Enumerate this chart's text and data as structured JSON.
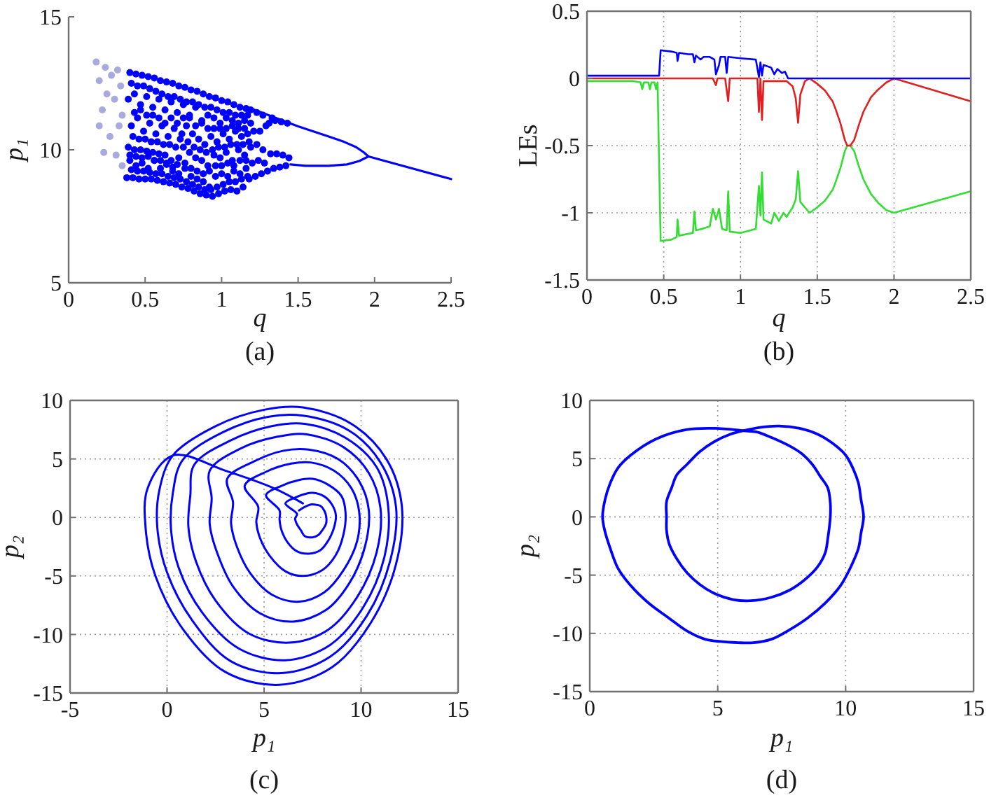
{
  "chart_data": [
    {
      "type": "scatter",
      "title": "(a)",
      "xlabel": "q",
      "ylabel": "p₁",
      "xlim": [
        0,
        2.5
      ],
      "ylim": [
        5,
        15
      ],
      "xticks": [
        0,
        0.5,
        1,
        1.5,
        2,
        2.5
      ],
      "yticks": [
        5,
        10,
        15
      ],
      "grid": false,
      "series": [
        {
          "color": "#a9a9dd",
          "marker": "circle",
          "x": [
            0.18,
            0.2,
            0.2,
            0.22,
            0.23,
            0.24,
            0.25,
            0.27,
            0.28,
            0.3,
            0.31,
            0.32,
            0.33,
            0.34,
            0.35,
            0.35
          ],
          "values": [
            13.3,
            12.6,
            10.9,
            11.5,
            9.9,
            13.1,
            12.1,
            10.5,
            12.8,
            11.9,
            9.8,
            13.0,
            10.9,
            12.4,
            9.4,
            11.3
          ]
        },
        {
          "color": "#0000ff",
          "marker": "circle",
          "x": [
            0.38,
            0.4,
            0.39,
            0.41,
            0.39,
            0.4,
            0.42,
            0.44,
            0.43,
            0.45,
            0.43,
            0.44,
            0.46,
            0.48,
            0.47,
            0.49,
            0.47,
            0.48,
            0.5,
            0.52,
            0.51,
            0.53,
            0.51,
            0.52,
            0.54,
            0.56,
            0.55,
            0.57,
            0.55,
            0.56,
            0.58,
            0.6,
            0.59,
            0.61,
            0.59,
            0.6,
            0.62,
            0.64,
            0.63,
            0.65,
            0.63,
            0.64,
            0.66,
            0.68,
            0.67,
            0.69,
            0.67,
            0.68,
            0.7,
            0.72,
            0.71,
            0.73,
            0.71,
            0.72,
            0.74,
            0.76,
            0.75,
            0.77,
            0.75,
            0.76,
            0.78,
            0.8,
            0.79,
            0.81,
            0.79,
            0.8,
            0.82,
            0.84,
            0.83,
            0.85,
            0.83,
            0.84,
            0.86,
            0.88,
            0.87,
            0.89,
            0.87,
            0.88,
            0.9,
            0.92,
            0.91,
            0.93,
            0.91,
            0.92,
            0.94,
            0.96,
            0.95,
            0.97,
            0.95,
            0.96,
            0.98,
            1.0,
            0.99,
            1.01,
            0.99,
            1.0,
            1.02,
            1.04,
            1.03,
            1.05,
            1.03,
            1.04,
            1.06,
            1.08,
            1.07,
            1.09,
            1.07,
            1.08,
            1.1,
            1.12,
            1.11,
            1.13,
            1.11,
            1.12,
            1.14,
            1.16,
            1.15,
            1.17,
            1.15,
            1.16,
            1.18,
            1.2,
            1.19,
            1.21,
            1.19,
            1.22,
            1.24,
            1.23,
            1.25,
            1.23,
            1.26,
            1.28,
            1.27,
            1.29,
            1.27,
            1.3,
            1.32,
            1.31,
            1.33,
            1.34,
            1.36,
            1.35,
            1.38,
            1.4,
            1.39,
            1.42,
            1.44,
            1.43
          ],
          "values": [
            8.95,
            9.6,
            10.1,
            10.9,
            11.9,
            12.9,
            8.95,
            9.4,
            10.0,
            11.2,
            12.1,
            12.85,
            8.9,
            9.5,
            10.0,
            10.7,
            11.7,
            12.8,
            8.9,
            9.3,
            9.95,
            11.0,
            12.0,
            12.75,
            8.9,
            9.6,
            9.9,
            10.6,
            11.6,
            12.7,
            8.85,
            9.3,
            9.85,
            10.9,
            11.9,
            12.6,
            8.8,
            9.5,
            9.8,
            10.5,
            11.5,
            12.55,
            8.75,
            9.2,
            9.6,
            10.8,
            11.8,
            12.5,
            8.7,
            9.1,
            9.45,
            10.4,
            11.4,
            12.4,
            8.6,
            9.3,
            10.1,
            10.9,
            11.7,
            12.35,
            8.55,
            9.0,
            9.9,
            10.6,
            11.3,
            12.25,
            8.45,
            8.9,
            9.7,
            10.4,
            11.6,
            12.2,
            8.35,
            8.8,
            9.6,
            10.2,
            11.1,
            12.1,
            8.3,
            8.6,
            9.4,
            10.5,
            11.3,
            12.0,
            8.25,
            9.0,
            9.8,
            10.3,
            11.2,
            11.95,
            8.35,
            9.1,
            9.7,
            10.6,
            11.0,
            11.85,
            8.45,
            9.0,
            9.9,
            10.4,
            11.2,
            11.8,
            8.5,
            9.2,
            9.6,
            10.7,
            11.1,
            11.7,
            8.45,
            9.1,
            10.0,
            10.5,
            11.0,
            11.6,
            8.6,
            9.3,
            9.8,
            10.6,
            11.1,
            11.55,
            8.9,
            9.5,
            10.1,
            10.7,
            11.5,
            9.0,
            9.6,
            10.2,
            10.7,
            11.4,
            9.1,
            9.5,
            10.0,
            10.9,
            11.3,
            9.2,
            9.85,
            11.0,
            11.2,
            9.3,
            9.85,
            11.1,
            9.35,
            9.8,
            11.05,
            9.4,
            9.7,
            11.0
          ]
        },
        {
          "color": "#0000ff",
          "marker": "circle",
          "x": [
            0.41,
            0.4,
            0.42,
            0.43,
            0.41,
            0.45,
            0.44,
            0.46,
            0.47,
            0.45,
            0.49,
            0.48,
            0.5,
            0.51,
            0.49,
            0.53,
            0.52,
            0.54,
            0.55,
            0.53,
            0.57,
            0.56,
            0.58,
            0.59,
            0.57,
            0.61,
            0.6,
            0.62,
            0.63,
            0.61,
            0.65,
            0.64,
            0.66,
            0.67,
            0.65,
            0.69,
            0.68,
            0.7,
            0.71,
            0.69,
            0.73,
            0.72,
            0.74,
            0.75,
            0.73,
            0.77,
            0.76,
            0.78,
            0.79,
            0.77,
            0.81,
            0.8,
            0.82,
            0.83,
            0.81,
            0.85,
            0.84,
            0.86,
            0.87,
            0.85,
            0.89,
            0.88,
            0.9,
            0.91,
            0.89,
            0.93,
            0.92,
            0.94,
            0.95,
            0.93,
            0.97,
            0.96,
            0.98,
            0.99,
            0.97,
            1.01,
            1.0,
            1.02,
            1.03,
            1.01,
            1.05,
            1.04,
            1.06,
            1.07,
            1.05,
            1.09,
            1.08,
            1.1,
            1.11,
            1.09,
            1.13,
            1.12,
            1.14,
            1.15,
            1.13,
            1.17,
            1.16,
            1.18,
            1.19,
            1.17
          ],
          "values": [
            9.25,
            9.8,
            10.5,
            11.4,
            12.5,
            9.2,
            9.75,
            10.4,
            11.5,
            12.4,
            9.2,
            9.7,
            10.4,
            11.3,
            12.4,
            9.15,
            9.75,
            10.3,
            11.3,
            12.3,
            9.1,
            9.6,
            10.3,
            11.2,
            12.2,
            9.1,
            9.6,
            10.2,
            11.0,
            12.1,
            9.0,
            9.45,
            10.2,
            11.2,
            12.0,
            8.95,
            9.35,
            10.1,
            11.0,
            12.0,
            8.9,
            9.7,
            10.6,
            11.2,
            11.9,
            8.8,
            9.5,
            10.3,
            11.2,
            11.8,
            8.7,
            9.3,
            10.1,
            10.9,
            11.8,
            8.6,
            9.2,
            10.0,
            11.0,
            11.7,
            8.5,
            9.1,
            9.9,
            10.8,
            11.6,
            8.5,
            9.2,
            10.0,
            10.8,
            11.6,
            8.6,
            9.4,
            10.1,
            10.8,
            11.5,
            8.7,
            9.4,
            10.1,
            10.8,
            11.4,
            8.8,
            9.5,
            10.2,
            10.9,
            11.4,
            8.8,
            9.4,
            10.2,
            10.8,
            11.3,
            8.9,
            9.6,
            10.2,
            10.8,
            11.3,
            9.0,
            9.6,
            10.3,
            11.0,
            11.3
          ]
        },
        {
          "type": "line",
          "color": "#0000ff",
          "x": [
            1.17,
            1.5,
            1.7,
            1.8,
            1.88,
            1.93,
            1.96,
            2.5
          ],
          "values": [
            11.6,
            10.88,
            10.5,
            10.3,
            10.1,
            9.9,
            9.75,
            8.9
          ]
        },
        {
          "type": "line",
          "color": "#0000ff",
          "x": [
            1.45,
            1.55,
            1.7,
            1.82,
            1.9,
            1.96
          ],
          "values": [
            9.45,
            9.4,
            9.4,
            9.45,
            9.58,
            9.75
          ]
        }
      ]
    },
    {
      "type": "line",
      "title": "(b)",
      "xlabel": "q",
      "ylabel": "LEs",
      "xlim": [
        0,
        2.5
      ],
      "ylim": [
        -1.5,
        0.5
      ],
      "xticks": [
        0,
        0.5,
        1,
        1.5,
        2,
        2.5
      ],
      "yticks": [
        -1.5,
        -1,
        -0.5,
        0,
        0.5
      ],
      "grid": true,
      "series": [
        {
          "color": "#33dd33",
          "x": [
            0,
            0.3,
            0.35,
            0.36,
            0.37,
            0.4,
            0.41,
            0.42,
            0.44,
            0.45,
            0.46,
            0.47,
            0.48,
            0.55,
            0.585,
            0.59,
            0.6,
            0.69,
            0.7,
            0.71,
            0.75,
            0.8,
            0.82,
            0.84,
            0.86,
            0.88,
            0.91,
            0.92,
            0.93,
            1.0,
            1.1,
            1.12,
            1.13,
            1.14,
            1.15,
            1.2,
            1.22,
            1.25,
            1.28,
            1.3,
            1.34,
            1.36,
            1.375,
            1.39,
            1.45,
            1.5,
            1.55,
            1.6,
            1.62,
            1.65,
            1.68,
            1.695,
            1.715,
            1.74,
            1.77,
            1.8,
            1.85,
            1.9,
            1.95,
            2.0,
            2.5
          ],
          "values": [
            -0.02,
            -0.02,
            -0.03,
            -0.08,
            -0.03,
            -0.03,
            -0.08,
            -0.03,
            -0.03,
            -0.08,
            -0.03,
            -0.63,
            -1.21,
            -1.2,
            -1.18,
            -1.05,
            -1.17,
            -1.15,
            -0.99,
            -1.13,
            -1.12,
            -1.1,
            -0.97,
            -1.05,
            -0.97,
            -1.12,
            -1.13,
            -0.84,
            -1.14,
            -1.15,
            -1.12,
            -0.8,
            -1.02,
            -0.7,
            -1.05,
            -1.08,
            -1.0,
            -1.06,
            -1.0,
            -1.03,
            -0.96,
            -0.9,
            -0.69,
            -0.92,
            -1.0,
            -0.96,
            -0.91,
            -0.83,
            -0.77,
            -0.67,
            -0.54,
            -0.5,
            -0.5,
            -0.54,
            -0.65,
            -0.75,
            -0.86,
            -0.93,
            -0.98,
            -1.0,
            -0.84
          ]
        },
        {
          "color": "#e02020",
          "x": [
            0,
            0.47,
            0.48,
            0.82,
            0.84,
            0.85,
            0.9,
            0.92,
            0.93,
            1.11,
            1.12,
            1.13,
            1.14,
            1.15,
            1.3,
            1.34,
            1.36,
            1.375,
            1.39,
            1.42,
            1.45,
            1.5,
            1.55,
            1.6,
            1.62,
            1.65,
            1.68,
            1.695,
            1.715,
            1.74,
            1.77,
            1.8,
            1.85,
            1.89,
            1.95,
            2.0,
            2.5
          ],
          "values": [
            0,
            0,
            0,
            0,
            -0.05,
            0,
            0,
            -0.17,
            0,
            0,
            -0.25,
            0,
            -0.31,
            -0.02,
            -0.02,
            -0.06,
            -0.15,
            -0.33,
            -0.12,
            -0.02,
            0,
            -0.04,
            -0.09,
            -0.17,
            -0.23,
            -0.33,
            -0.46,
            -0.5,
            -0.5,
            -0.46,
            -0.35,
            -0.25,
            -0.14,
            -0.09,
            -0.03,
            0,
            -0.17
          ]
        },
        {
          "color": "#0000ff",
          "x": [
            0,
            0.2,
            0.4,
            0.47,
            0.48,
            0.55,
            0.585,
            0.59,
            0.6,
            0.66,
            0.69,
            0.7,
            0.71,
            0.74,
            0.76,
            0.8,
            0.83,
            0.84,
            0.86,
            0.87,
            0.9,
            0.91,
            0.92,
            1.0,
            1.1,
            1.12,
            1.13,
            1.14,
            1.15,
            1.2,
            1.22,
            1.24,
            1.27,
            1.29,
            1.31,
            1.5,
            2.5
          ],
          "values": [
            0.02,
            0.02,
            0.02,
            0.02,
            0.21,
            0.2,
            0.19,
            0.13,
            0.19,
            0.18,
            0.18,
            0.12,
            0.17,
            0.14,
            0.16,
            0.16,
            0.14,
            0.03,
            0.1,
            0.16,
            0.16,
            0.04,
            0.16,
            0.15,
            0.14,
            0.01,
            0.12,
            0.02,
            0.1,
            0.08,
            0.03,
            0.07,
            0.04,
            0.05,
            0,
            0,
            0
          ]
        }
      ]
    },
    {
      "type": "line",
      "title": "(c)",
      "xlabel": "p₁",
      "ylabel": "p₂",
      "xlim": [
        -5,
        15
      ],
      "ylim": [
        -15,
        10
      ],
      "xticks": [
        -5,
        0,
        5,
        10,
        15
      ],
      "yticks": [
        -15,
        -10,
        -5,
        0,
        5,
        10
      ],
      "grid": true,
      "series": [
        {
          "color": "#0000ff",
          "x": [
            6.8,
            7.1,
            7.4,
            7.6,
            7.9,
            8.1,
            8.2,
            8.2,
            8.0,
            7.8,
            7.5,
            7.1,
            6.9,
            6.7,
            6.6,
            6.7,
            6.1,
            6.6,
            7.1,
            7.5,
            8.1,
            8.5,
            8.7,
            8.6,
            8.3,
            7.9,
            7.3,
            6.7,
            6.2,
            5.9,
            5.8,
            5.8,
            5.1,
            5.9,
            6.8,
            7.5,
            8.3,
            9.0,
            9.2,
            9.1,
            8.7,
            8.0,
            7.0,
            6.1,
            5.3,
            4.8,
            4.6,
            4.7,
            4.0,
            5.1,
            6.4,
            7.4,
            8.6,
            9.5,
            9.9,
            9.8,
            9.1,
            8.1,
            6.8,
            5.4,
            4.3,
            3.6,
            3.3,
            3.4,
            3.1,
            4.5,
            6.0,
            7.3,
            8.8,
            9.9,
            10.4,
            10.2,
            9.4,
            8.2,
            6.5,
            4.8,
            3.4,
            2.6,
            2.2,
            2.3,
            2.2,
            3.8,
            5.7,
            7.2,
            9.1,
            10.4,
            11.0,
            10.8,
            9.8,
            8.3,
            6.3,
            4.2,
            2.5,
            1.5,
            1.1,
            1.2,
            1.4,
            3.3,
            5.4,
            7.1,
            9.2,
            10.8,
            11.4,
            11.2,
            10.1,
            8.4,
            6.1,
            3.7,
            1.8,
            0.6,
            0.2,
            0.3,
            0.8,
            2.9,
            5.2,
            7.0,
            9.4,
            11.0,
            11.8,
            11.5,
            10.3,
            8.4,
            5.9,
            3.3,
            1.3,
            0,
            -0.5,
            -0.4,
            0.3,
            2.5,
            5.0,
            7.0,
            9.5,
            11.3,
            12.1,
            11.8,
            10.5,
            8.5,
            5.8,
            3.0,
            0.8,
            -0.6,
            -1.1,
            -1.0,
            0.3,
            3.0,
            5.5,
            7.0
          ],
          "values": [
            0.6,
            0.9,
            1.1,
            1.1,
            1.0,
            0.6,
            0.1,
            -0.5,
            -1.1,
            -1.5,
            -1.7,
            -1.6,
            -1.1,
            -0.6,
            -0.1,
            0.3,
            1.2,
            1.7,
            2.0,
            2.1,
            1.8,
            1.1,
            0.2,
            -0.9,
            -2.0,
            -2.8,
            -3.1,
            -2.9,
            -2.1,
            -1.1,
            -0.2,
            0.6,
            1.9,
            2.7,
            3.2,
            3.3,
            2.8,
            1.8,
            0.4,
            -1.4,
            -3.2,
            -4.5,
            -5.0,
            -4.6,
            -3.3,
            -1.8,
            -0.4,
            0.9,
            2.7,
            3.9,
            4.6,
            4.7,
            4.0,
            2.5,
            0.5,
            -2.0,
            -4.5,
            -6.4,
            -7.2,
            -6.6,
            -4.8,
            -2.5,
            -0.5,
            1.3,
            3.3,
            4.8,
            5.7,
            5.8,
            5.0,
            3.1,
            0.6,
            -2.5,
            -5.6,
            -7.9,
            -8.9,
            -8.2,
            -5.9,
            -3.1,
            -0.6,
            1.6,
            4.0,
            5.9,
            6.9,
            7.1,
            6.0,
            3.8,
            0.8,
            -3.0,
            -6.8,
            -9.6,
            -10.7,
            -9.9,
            -7.1,
            -3.8,
            -0.8,
            1.9,
            4.5,
            6.6,
            7.8,
            8.0,
            6.8,
            4.3,
            0.9,
            -3.4,
            -7.7,
            -10.9,
            -12.2,
            -11.2,
            -8.1,
            -4.3,
            -0.9,
            2.1,
            4.9,
            7.3,
            8.6,
            8.7,
            7.4,
            4.7,
            0.9,
            -3.7,
            -8.4,
            -11.9,
            -13.3,
            -12.3,
            -8.8,
            -4.7,
            -0.9,
            2.3,
            5.3,
            7.8,
            9.2,
            9.4,
            8.0,
            5.0,
            1.0,
            -4.0,
            -9.0,
            -12.8,
            -14.3,
            -13.2,
            -9.5,
            -5.0,
            -1.0,
            2.5,
            5.3,
            4.0,
            2.5,
            1.2
          ]
        }
      ]
    },
    {
      "type": "line",
      "title": "(d)",
      "xlabel": "p₁",
      "ylabel": "p₂",
      "xlim": [
        0,
        15
      ],
      "ylim": [
        -15,
        10
      ],
      "xticks": [
        0,
        5,
        10,
        15
      ],
      "yticks": [
        -15,
        -10,
        -5,
        0,
        5,
        10
      ],
      "grid": true,
      "series": [
        {
          "color": "#0000ff",
          "x": [
            6.0,
            6.5,
            6.9,
            7.8,
            8.3,
            8.7,
            9.0,
            9.3,
            9.4,
            9.4,
            9.3,
            9.2,
            8.9,
            8.4,
            7.8,
            7.1,
            6.3,
            5.6,
            4.9,
            4.3,
            3.8,
            3.4,
            3.1,
            3.0,
            3.0,
            3.0,
            3.2,
            3.4,
            3.8,
            4.3,
            4.9,
            5.5,
            6.0,
            6.7,
            7.4,
            8.2,
            8.9,
            9.5,
            10.0,
            10.3,
            10.5,
            10.6,
            10.7,
            10.6,
            10.5,
            10.2,
            9.8,
            9.2,
            8.5,
            7.8,
            7.1,
            6.4,
            5.8,
            5.1,
            4.5,
            3.8,
            3.1,
            2.3,
            1.6,
            1.1,
            0.8,
            0.6,
            0.5,
            0.6,
            0.8,
            1.1,
            1.6,
            2.6,
            3.8,
            4.9,
            6.0,
            6.5
          ],
          "values": [
            7.4,
            7.3,
            7.0,
            6.1,
            5.4,
            4.5,
            3.5,
            2.5,
            1.2,
            0,
            -1.9,
            -3.1,
            -4.3,
            -5.4,
            -6.3,
            -6.9,
            -7.2,
            -7.1,
            -6.6,
            -5.8,
            -4.8,
            -3.6,
            -2.3,
            -1.1,
            0,
            1.3,
            2.5,
            3.6,
            4.5,
            5.6,
            6.5,
            7.1,
            7.4,
            7.7,
            7.8,
            7.6,
            7.1,
            6.3,
            5.3,
            4.1,
            2.9,
            1.5,
            0,
            -1.4,
            -2.7,
            -4.3,
            -5.9,
            -7.4,
            -8.7,
            -9.7,
            -10.5,
            -10.8,
            -10.8,
            -10.7,
            -10.5,
            -9.8,
            -8.7,
            -7.4,
            -5.9,
            -4.4,
            -2.7,
            -1.3,
            0,
            1.5,
            2.9,
            4.2,
            5.3,
            6.7,
            7.5,
            7.6,
            7.4,
            7.3
          ]
        }
      ]
    }
  ]
}
